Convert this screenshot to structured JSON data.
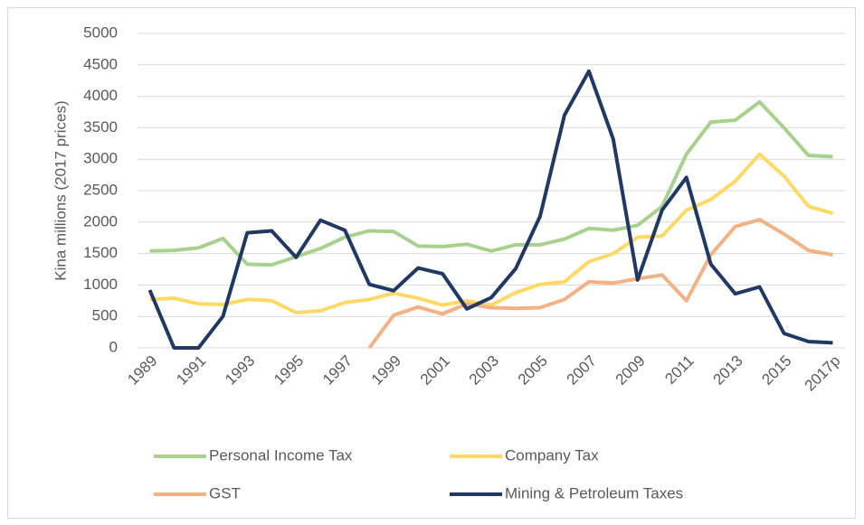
{
  "chart_data": {
    "type": "line",
    "y_label": "Kina millions (2017 prices)",
    "categories": [
      "1989",
      null,
      "1991",
      null,
      "1993",
      null,
      "1995",
      null,
      "1997",
      null,
      "1999",
      null,
      "2001",
      null,
      "2003",
      null,
      "2005",
      null,
      "2007",
      null,
      "2009",
      null,
      "2011",
      null,
      "2013",
      null,
      "2015",
      null,
      "2017p"
    ],
    "series": [
      {
        "name": "Personal Income Tax",
        "color": "#a9d18e",
        "values": [
          1540,
          1550,
          1590,
          1740,
          1330,
          1320,
          1450,
          1580,
          1760,
          1860,
          1850,
          1620,
          1610,
          1650,
          1540,
          1640,
          1640,
          1730,
          1900,
          1870,
          1950,
          2250,
          3080,
          3590,
          3620,
          3910,
          3500,
          3060,
          3040
        ]
      },
      {
        "name": "Company Tax",
        "color": "#ffd966",
        "values": [
          770,
          790,
          700,
          690,
          770,
          750,
          560,
          590,
          720,
          770,
          870,
          790,
          680,
          750,
          680,
          880,
          1010,
          1050,
          1370,
          1500,
          1760,
          1780,
          2190,
          2360,
          2650,
          3080,
          2730,
          2250,
          2140
        ]
      },
      {
        "name": "GST",
        "color": "#f4b183",
        "values": [
          null,
          null,
          null,
          null,
          null,
          null,
          null,
          null,
          null,
          0,
          520,
          650,
          540,
          700,
          640,
          630,
          640,
          770,
          1050,
          1030,
          1100,
          1160,
          750,
          1480,
          1930,
          2040,
          1810,
          1550,
          1480
        ]
      },
      {
        "name": "Mining & Petroleum Taxes",
        "color": "#203864",
        "values": [
          920,
          0,
          0,
          500,
          1830,
          1860,
          1440,
          2030,
          1870,
          1010,
          910,
          1270,
          1180,
          620,
          800,
          1260,
          2090,
          3700,
          4400,
          3320,
          1080,
          2190,
          2710,
          1330,
          860,
          970,
          230,
          100,
          80
        ]
      }
    ],
    "ylim": [
      0,
      5000
    ],
    "yticks": [
      0,
      500,
      1000,
      1500,
      2000,
      2500,
      3000,
      3500,
      4000,
      4500,
      5000
    ],
    "grid": true,
    "legend": "bottom"
  }
}
